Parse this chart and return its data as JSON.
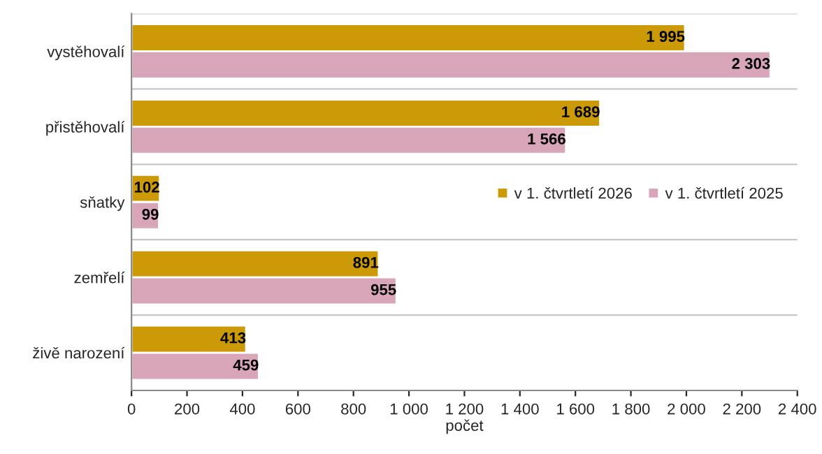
{
  "chart_data": {
    "type": "bar",
    "orientation": "horizontal",
    "xlabel": "počet",
    "categories": [
      "vystěhovalí",
      "přistěhovalí",
      "sňatky",
      "zemřelí",
      "živě narození"
    ],
    "series": [
      {
        "name": "v 1. čtvrtletí 2026",
        "color": "#cc9a06",
        "values": [
          1995,
          1689,
          102,
          891,
          413
        ],
        "value_labels": [
          "1 995",
          "1 689",
          "102",
          "891",
          "413"
        ]
      },
      {
        "name": "v 1. čtvrtletí 2025",
        "color": "#d8a5b9",
        "values": [
          2303,
          1566,
          99,
          955,
          459
        ],
        "value_labels": [
          "2 303",
          "1 566",
          "99",
          "955",
          "459"
        ]
      }
    ],
    "xlim": [
      0,
      2400
    ],
    "xticks": [
      0,
      200,
      400,
      600,
      800,
      {
        "value": 1000,
        "label": "1 000"
      },
      {
        "value": 1200,
        "label": "1 200"
      },
      {
        "value": 1400,
        "label": "1 400"
      },
      {
        "value": 1600,
        "label": "1 600"
      },
      {
        "value": 1800,
        "label": "1 800"
      },
      {
        "value": 2000,
        "label": "2 000"
      },
      {
        "value": 2200,
        "label": "2 200"
      },
      {
        "value": 2400,
        "label": "2 400"
      }
    ],
    "grid": "y",
    "legend": "right"
  }
}
